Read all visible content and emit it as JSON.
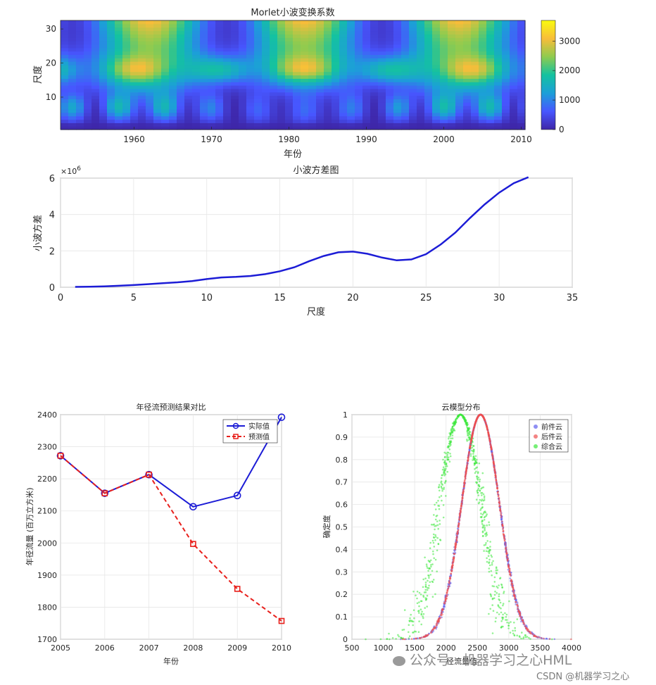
{
  "chart_data": [
    {
      "type": "heatmap",
      "title": "Morlet小波变换系数",
      "xlabel": "年份",
      "ylabel": "尺度",
      "xlim": [
        1951,
        2010
      ],
      "ylim": [
        1,
        32
      ],
      "xticks": [
        "1960",
        "1970",
        "1980",
        "1990",
        "2000",
        "2010"
      ],
      "yticks": [
        "10",
        "20",
        "30"
      ],
      "colorbar": {
        "ticks": [
          "0",
          "1000",
          "2000",
          "3000"
        ],
        "range": [
          0,
          3700
        ],
        "colors": [
          "#3e26a8",
          "#4756ff",
          "#1c9fd8",
          "#14c2a0",
          "#8fcb4f",
          "#f8bd3a",
          "#f9fb0e"
        ]
      },
      "description_features": {
        "high_peaks_top": [
          1962,
          1982,
          2002
        ],
        "ridge_lines_from": [
          1973,
          1993
        ]
      }
    },
    {
      "type": "line",
      "title": "小波方差图",
      "xlabel": "尺度",
      "ylabel": "小波方差",
      "y_exponent": "×10^6",
      "xlim": [
        0,
        35
      ],
      "ylim": [
        0,
        6
      ],
      "xticks": [
        "0",
        "5",
        "10",
        "15",
        "20",
        "25",
        "30",
        "35"
      ],
      "yticks": [
        "0",
        "2",
        "4",
        "6"
      ],
      "grid": true,
      "series": [
        {
          "color": "#1c1cd6",
          "x": [
            1,
            2,
            3,
            4,
            5,
            6,
            7,
            8,
            9,
            10,
            11,
            12,
            13,
            14,
            15,
            16,
            17,
            18,
            19,
            20,
            21,
            22,
            23,
            24,
            25,
            26,
            27,
            28,
            29,
            30,
            31,
            32
          ],
          "y": [
            0.02,
            0.03,
            0.05,
            0.08,
            0.12,
            0.17,
            0.22,
            0.27,
            0.34,
            0.45,
            0.54,
            0.57,
            0.62,
            0.72,
            0.88,
            1.1,
            1.43,
            1.72,
            1.92,
            1.96,
            1.84,
            1.63,
            1.48,
            1.53,
            1.82,
            2.35,
            3.0,
            3.8,
            4.55,
            5.2,
            5.72,
            6.05
          ]
        }
      ]
    },
    {
      "type": "line",
      "title": "年径流预测结果对比",
      "xlabel": "年份",
      "ylabel": "年径流量 (百万立方米)",
      "categories": [
        "2005",
        "2006",
        "2007",
        "2008",
        "2009",
        "2010"
      ],
      "ylim": [
        1700,
        2400
      ],
      "yticks": [
        "1700",
        "1800",
        "1900",
        "2000",
        "2100",
        "2200",
        "2300",
        "2400"
      ],
      "grid": true,
      "legend": "top-right",
      "series": [
        {
          "name": "实际值",
          "color": "#1c1cd6",
          "values": [
            2272,
            2155,
            2213,
            2113,
            2148,
            2392
          ]
        },
        {
          "name": "预测值",
          "color": "#e8201c",
          "values": [
            2272,
            2155,
            2213,
            1997,
            1857,
            1757
          ]
        }
      ]
    },
    {
      "type": "scatter",
      "title": "云模型分布",
      "xlabel": "径流量值",
      "ylabel": "确定度",
      "xlim": [
        500,
        4000
      ],
      "ylim": [
        0,
        1
      ],
      "xticks": [
        "500",
        "1000",
        "1500",
        "2000",
        "2500",
        "3000",
        "3500",
        "4000"
      ],
      "yticks": [
        "0",
        "0.1",
        "0.2",
        "0.3",
        "0.4",
        "0.5",
        "0.6",
        "0.7",
        "0.8",
        "0.9",
        "1"
      ],
      "grid": true,
      "legend": "top-right",
      "series": [
        {
          "name": "前件云",
          "color": "#6060ee",
          "Ex": 2550,
          "En": 300,
          "He": 5
        },
        {
          "name": "后件云",
          "color": "#ee5050",
          "Ex": 2550,
          "En": 300,
          "He": 3
        },
        {
          "name": "综合云",
          "color": "#3ce83c",
          "Ex": 2230,
          "En": 330,
          "He": 40
        }
      ]
    }
  ],
  "watermark": {
    "main": "公众号 · 机器学习之心HML",
    "csdn": "CSDN @机器学习之心"
  }
}
